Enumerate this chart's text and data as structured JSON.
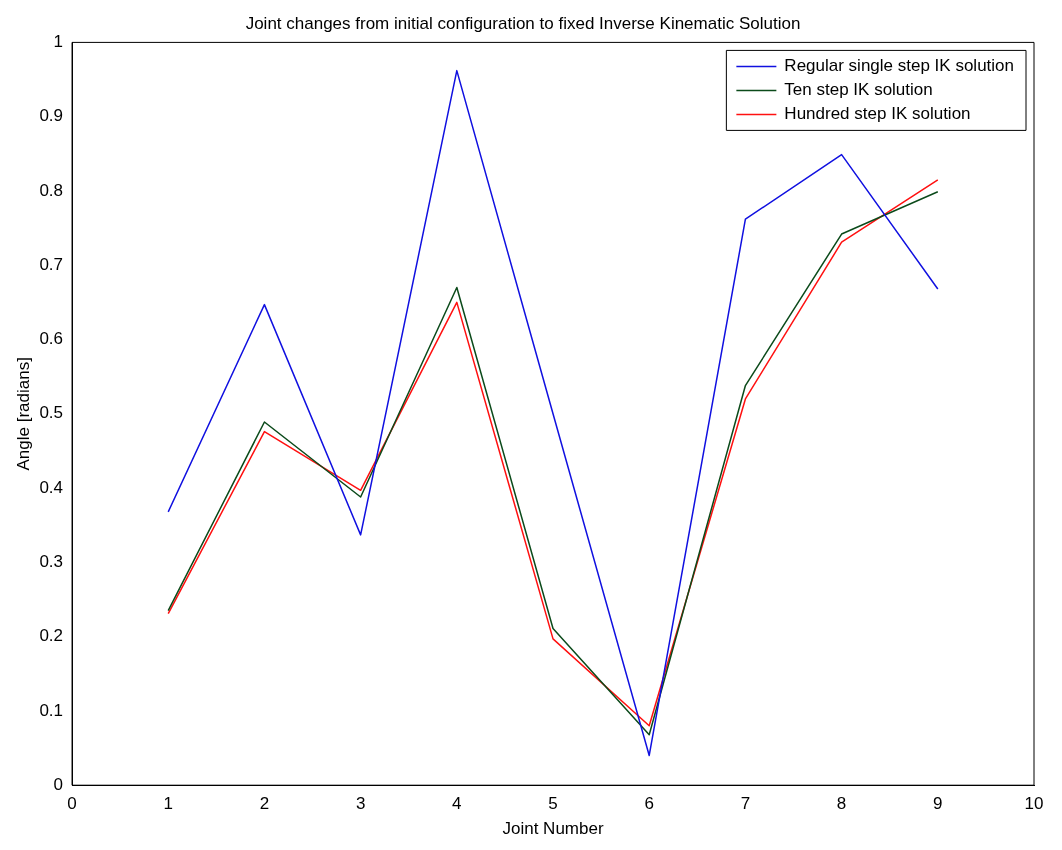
{
  "chart_data": {
    "type": "line",
    "title": "Joint changes from initial configuration to fixed Inverse Kinematic Solution",
    "xlabel": "Joint Number",
    "ylabel": "Angle [radians]",
    "x": [
      1,
      2,
      3,
      4,
      5,
      6,
      7,
      8,
      9
    ],
    "series": [
      {
        "name": "Regular single step IK solution",
        "color": "#1010e0",
        "values": [
          0.368,
          0.647,
          0.337,
          0.962,
          0.5,
          0.04,
          0.762,
          0.849,
          0.668
        ]
      },
      {
        "name": "Ten step IK solution",
        "color": "#0b4a1a",
        "values": [
          0.235,
          0.489,
          0.388,
          0.67,
          0.211,
          0.068,
          0.538,
          0.742,
          0.799
        ]
      },
      {
        "name": "Hundred step IK solution",
        "color": "#ff1010",
        "values": [
          0.231,
          0.476,
          0.397,
          0.65,
          0.197,
          0.08,
          0.52,
          0.731,
          0.815
        ]
      }
    ],
    "xlim": [
      0,
      10
    ],
    "xticks": [
      0,
      1,
      2,
      3,
      4,
      5,
      6,
      7,
      8,
      9,
      10
    ],
    "ylim": [
      0,
      1
    ],
    "yticks": [
      0,
      0.1,
      0.2,
      0.3,
      0.4,
      0.5,
      0.6,
      0.7,
      0.8,
      0.9,
      1
    ],
    "grid": false,
    "legend": "top right",
    "marker": "none",
    "line_style": "solid"
  }
}
